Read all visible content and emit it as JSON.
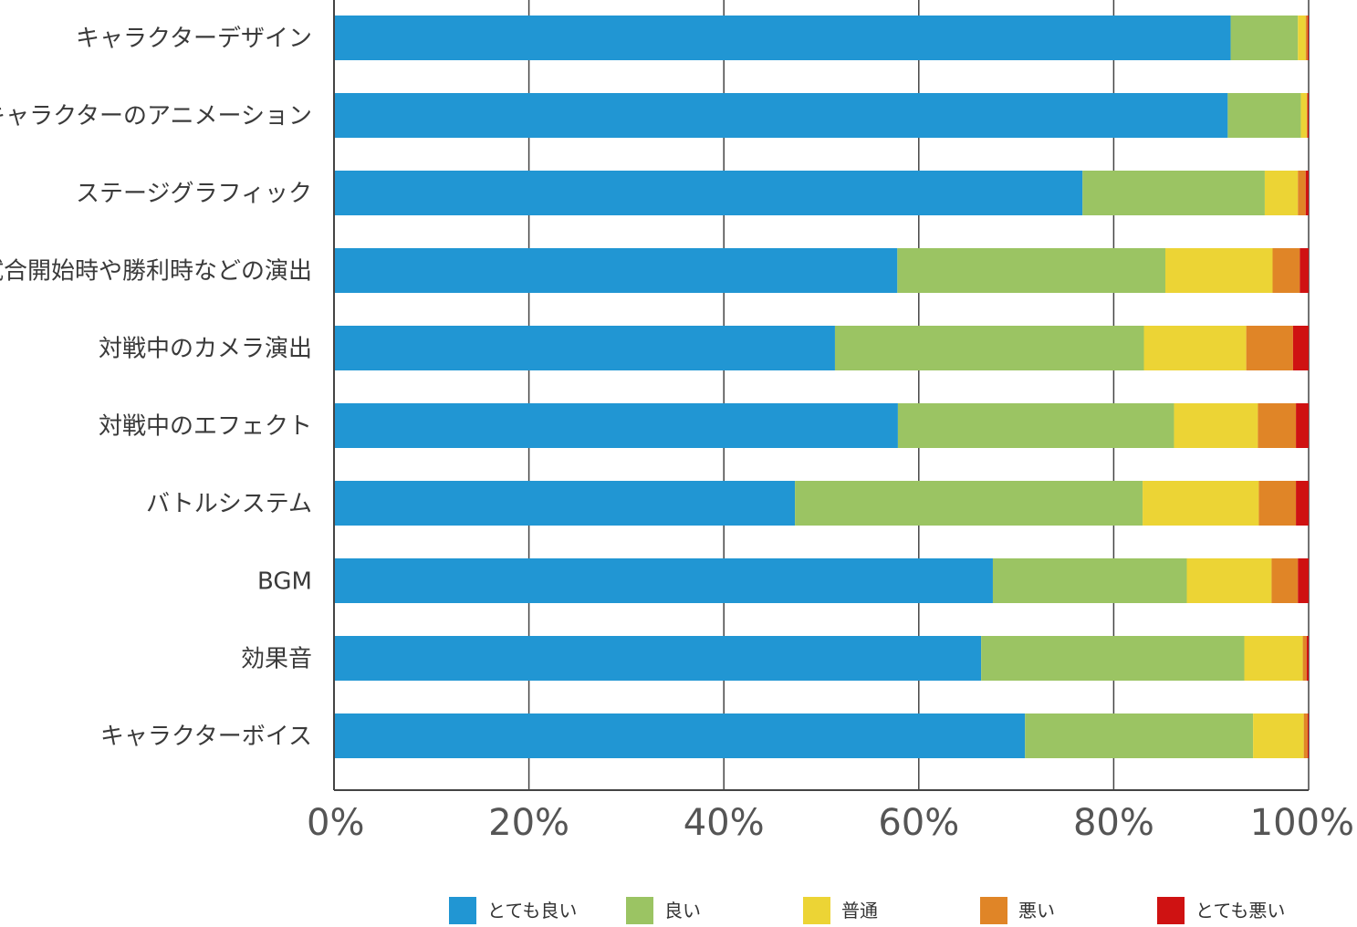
{
  "chart_data": {
    "type": "bar",
    "orientation": "horizontal",
    "stacked": true,
    "percent_stacked": true,
    "categories": [
      "キャラクターデザイン",
      "キャラクターのアニメーション",
      "ステージグラフィック",
      "試合開始時や勝利時などの演出",
      "対戦中のカメラ演出",
      "対戦中のエフェクト",
      "バトルシステム",
      "BGM",
      "効果音",
      "キャラクターボイス"
    ],
    "series": [
      {
        "name": "とても良い",
        "color": "#2196d3",
        "values": [
          92.0,
          91.7,
          76.8,
          57.8,
          51.4,
          57.8,
          47.2,
          67.6,
          66.4,
          70.9
        ]
      },
      {
        "name": "良い",
        "color": "#9bc463",
        "values": [
          6.9,
          7.5,
          18.7,
          27.5,
          31.7,
          28.3,
          35.6,
          19.9,
          27.0,
          23.4
        ]
      },
      {
        "name": "普通",
        "color": "#ecd435",
        "values": [
          0.8,
          0.6,
          3.4,
          11.0,
          10.5,
          8.6,
          11.9,
          8.7,
          6.0,
          5.2
        ]
      },
      {
        "name": "悪い",
        "color": "#e08527",
        "values": [
          0.2,
          0.1,
          0.8,
          2.8,
          4.8,
          3.9,
          3.8,
          2.7,
          0.4,
          0.4
        ]
      },
      {
        "name": "とても悪い",
        "color": "#cf1212",
        "values": [
          0.1,
          0.1,
          0.3,
          0.9,
          1.6,
          1.3,
          1.3,
          1.1,
          0.2,
          0.1
        ]
      }
    ],
    "xlim": [
      0,
      100
    ],
    "xticks": [
      "0%",
      "20%",
      "40%",
      "60%",
      "80%",
      "100%"
    ],
    "grid": true,
    "legend_position": "bottom"
  },
  "colors": {
    "grid": "#444444",
    "text": "#3a3a3a"
  }
}
